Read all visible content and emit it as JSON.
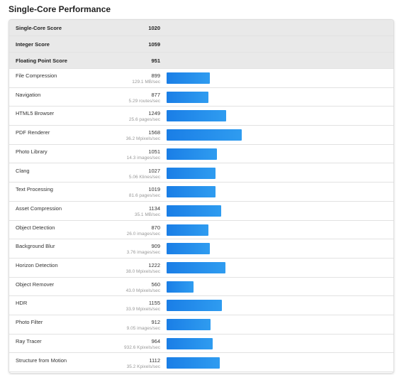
{
  "title": "Single-Core Performance",
  "summary": [
    {
      "label": "Single-Core Score",
      "score": 1020
    },
    {
      "label": "Integer Score",
      "score": 1059
    },
    {
      "label": "Floating Point Score",
      "score": 951
    }
  ],
  "tests": [
    {
      "name": "File Compression",
      "score": 899,
      "rate": "129.1 MB/sec"
    },
    {
      "name": "Navigation",
      "score": 877,
      "rate": "5.29 routes/sec"
    },
    {
      "name": "HTML5 Browser",
      "score": 1249,
      "rate": "25.6 pages/sec"
    },
    {
      "name": "PDF Renderer",
      "score": 1568,
      "rate": "36.2 Mpixels/sec"
    },
    {
      "name": "Photo Library",
      "score": 1051,
      "rate": "14.3 images/sec"
    },
    {
      "name": "Clang",
      "score": 1027,
      "rate": "5.06 Klines/sec"
    },
    {
      "name": "Text Processing",
      "score": 1019,
      "rate": "81.6 pages/sec"
    },
    {
      "name": "Asset Compression",
      "score": 1134,
      "rate": "35.1 MB/sec"
    },
    {
      "name": "Object Detection",
      "score": 870,
      "rate": "26.0 images/sec"
    },
    {
      "name": "Background Blur",
      "score": 909,
      "rate": "3.76 images/sec"
    },
    {
      "name": "Horizon Detection",
      "score": 1222,
      "rate": "38.0 Mpixels/sec"
    },
    {
      "name": "Object Remover",
      "score": 560,
      "rate": "43.0 Mpixels/sec"
    },
    {
      "name": "HDR",
      "score": 1155,
      "rate": "33.9 Mpixels/sec"
    },
    {
      "name": "Photo Filter",
      "score": 912,
      "rate": "9.05 images/sec"
    },
    {
      "name": "Ray Tracer",
      "score": 964,
      "rate": "932.6 Kpixels/sec"
    },
    {
      "name": "Structure from Motion",
      "score": 1112,
      "rate": "35.2 Kpixels/sec"
    }
  ]
}
